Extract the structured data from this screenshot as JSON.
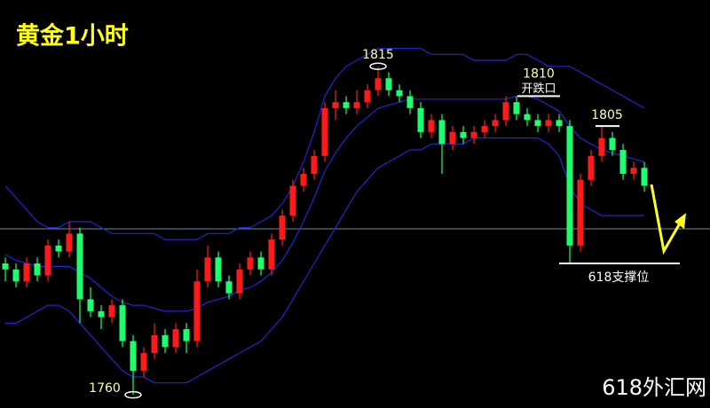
{
  "title": "黄金1小时",
  "watermark": "618外汇网",
  "chart_data": {
    "type": "candlestick",
    "ylim": [
      1757.8,
      1826.1
    ],
    "up_color": "#ff1a1a",
    "down_color": "#1aff6a",
    "band_color": "#2424d8",
    "reference_line": {
      "value": 1787.8,
      "color": "#6b8a9a"
    },
    "open": [
      1782,
      1781,
      1779,
      1782,
      1780,
      1785,
      1784,
      1787,
      1776,
      1774,
      1773,
      1775,
      1769,
      1764,
      1767,
      1770,
      1768,
      1771,
      1769,
      1779,
      1783,
      1779,
      1777,
      1781,
      1783,
      1781,
      1786,
      1790,
      1795,
      1797,
      1800,
      1808,
      1809,
      1808,
      1809,
      1811,
      1813,
      1811,
      1810,
      1808,
      1804,
      1806,
      1802,
      1804,
      1803,
      1804,
      1805,
      1806,
      1809,
      1807,
      1806,
      1805,
      1806,
      1805,
      1785,
      1796,
      1800,
      1803,
      1801,
      1797,
      1798
    ],
    "high": [
      1783,
      1782,
      1783,
      1783,
      1786,
      1786,
      1789,
      1788,
      1778,
      1775,
      1776,
      1776,
      1770,
      1768,
      1772,
      1771,
      1772,
      1772,
      1781,
      1785,
      1784,
      1780,
      1782,
      1784,
      1784,
      1787,
      1791,
      1796,
      1798,
      1801,
      1809,
      1811,
      1810,
      1811,
      1812,
      1815,
      1814,
      1812,
      1811,
      1809,
      1807,
      1807,
      1805,
      1805,
      1805,
      1806,
      1807,
      1810,
      1810,
      1808,
      1807,
      1807,
      1807,
      1806,
      1797,
      1801,
      1805,
      1804,
      1802,
      1799,
      1799
    ],
    "low": [
      1779,
      1778,
      1778,
      1779,
      1779,
      1783,
      1783,
      1772,
      1773,
      1771,
      1772,
      1768,
      1760,
      1763,
      1766,
      1767,
      1767,
      1767,
      1768,
      1778,
      1778,
      1776,
      1776,
      1780,
      1780,
      1780,
      1785,
      1789,
      1794,
      1796,
      1799,
      1806,
      1807,
      1807,
      1808,
      1810,
      1810,
      1809,
      1807,
      1803,
      1803,
      1797,
      1801,
      1802,
      1802,
      1803,
      1804,
      1805,
      1806,
      1805,
      1804,
      1804,
      1804,
      1782,
      1784,
      1795,
      1799,
      1800,
      1796,
      1796,
      1794
    ],
    "close": [
      1781,
      1779,
      1782,
      1780,
      1785,
      1784,
      1787,
      1776,
      1774,
      1773,
      1775,
      1769,
      1764,
      1767,
      1770,
      1768,
      1771,
      1769,
      1779,
      1783,
      1779,
      1777,
      1781,
      1783,
      1781,
      1786,
      1790,
      1795,
      1797,
      1800,
      1808,
      1809,
      1808,
      1809,
      1811,
      1813,
      1811,
      1810,
      1808,
      1804,
      1806,
      1802,
      1804,
      1803,
      1804,
      1805,
      1806,
      1809,
      1807,
      1806,
      1805,
      1806,
      1805,
      1785,
      1796,
      1800,
      1803,
      1801,
      1797,
      1798,
      1795
    ],
    "bands": [
      {
        "values": [
          1795,
          1793,
          1791,
          1789,
          1788,
          1788,
          1789,
          1789,
          1789,
          1788,
          1787,
          1787,
          1787,
          1787,
          1787,
          1786,
          1786,
          1786,
          1786,
          1787,
          1787,
          1787,
          1788,
          1788,
          1789,
          1790,
          1792,
          1795,
          1799,
          1804,
          1810,
          1813,
          1815,
          1816,
          1817,
          1818,
          1818,
          1818,
          1818,
          1818,
          1817,
          1817,
          1817,
          1817,
          1816,
          1816,
          1816,
          1816,
          1817,
          1817,
          1816,
          1815,
          1815,
          1815,
          1814,
          1813,
          1812,
          1811,
          1810,
          1809,
          1808
        ]
      },
      {
        "values": [
          1783.5,
          1782.5,
          1782,
          1781.5,
          1781.5,
          1781.5,
          1781.5,
          1780.5,
          1779.5,
          1778,
          1776.5,
          1775.5,
          1775,
          1775,
          1774.5,
          1774,
          1774,
          1774,
          1774.5,
          1775.5,
          1776,
          1776.5,
          1777.5,
          1778,
          1779,
          1780.5,
          1782.5,
          1785.5,
          1789,
          1793,
          1797.5,
          1800.5,
          1803,
          1805,
          1806.5,
          1808,
          1808.5,
          1809,
          1809.5,
          1809.5,
          1809.5,
          1809.5,
          1809.5,
          1809.5,
          1809.5,
          1809.5,
          1809.5,
          1809.5,
          1810,
          1810,
          1809.5,
          1808.5,
          1807.5,
          1805,
          1803,
          1802,
          1801,
          1800.5,
          1800,
          1799.5,
          1799
        ]
      },
      {
        "values": [
          1772,
          1772,
          1773,
          1774,
          1775,
          1775,
          1774,
          1772,
          1770,
          1768,
          1766,
          1764,
          1763,
          1763,
          1762,
          1762,
          1762,
          1762,
          1763,
          1764,
          1765,
          1766,
          1767,
          1768,
          1769,
          1771,
          1773,
          1776,
          1779,
          1782,
          1785,
          1788,
          1791,
          1794,
          1796,
          1798,
          1799,
          1800,
          1801,
          1801,
          1802,
          1802,
          1802,
          1802,
          1803,
          1803,
          1803,
          1803,
          1803,
          1803,
          1803,
          1802,
          1800,
          1795,
          1792,
          1791,
          1790,
          1790,
          1790,
          1790,
          1790
        ]
      }
    ],
    "annotations": [
      {
        "label": 1815
      },
      {
        "label": 1760
      },
      {
        "label": 1810,
        "note": "开跌口"
      },
      {
        "label": 1805
      },
      {
        "note": "618支撑位",
        "level": 1782
      }
    ]
  }
}
